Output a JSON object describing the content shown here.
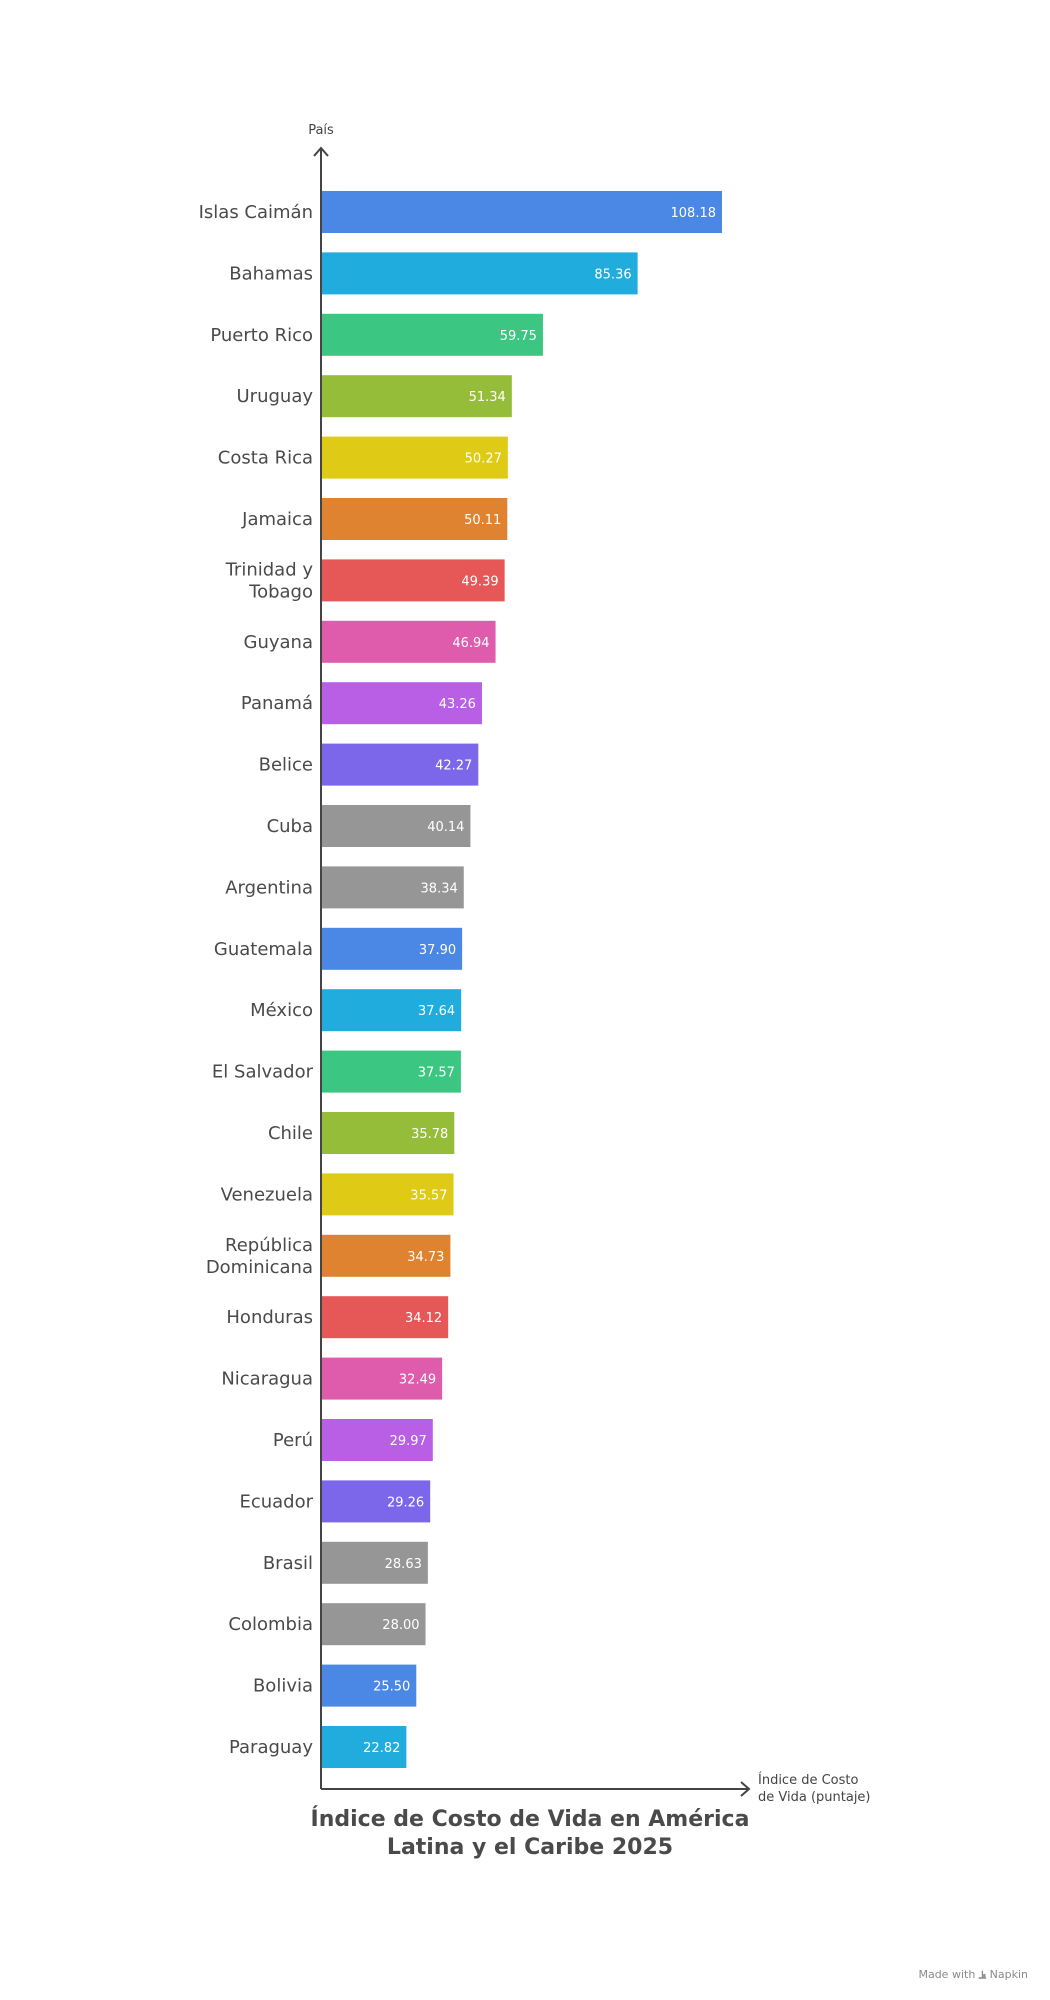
{
  "chart_data": {
    "type": "bar",
    "orientation": "horizontal",
    "title": "Índice de Costo de Vida en América Latina y el Caribe 2025",
    "ylabel": "País",
    "xlabel": "Índice de Costo de Vida (puntaje)",
    "xlim": [
      0,
      108.18
    ],
    "grid": false,
    "legend": "none",
    "categories": [
      "Islas Caimán",
      "Bahamas",
      "Puerto Rico",
      "Uruguay",
      "Costa Rica",
      "Jamaica",
      "Trinidad y Tobago",
      "Guyana",
      "Panamá",
      "Belice",
      "Cuba",
      "Argentina",
      "Guatemala",
      "México",
      "El Salvador",
      "Chile",
      "Venezuela",
      "República Dominicana",
      "Honduras",
      "Nicaragua",
      "Perú",
      "Ecuador",
      "Brasil",
      "Colombia",
      "Bolivia",
      "Paraguay"
    ],
    "category_lines": [
      [
        "Islas Caimán"
      ],
      [
        "Bahamas"
      ],
      [
        "Puerto Rico"
      ],
      [
        "Uruguay"
      ],
      [
        "Costa Rica"
      ],
      [
        "Jamaica"
      ],
      [
        "Trinidad y",
        "Tobago"
      ],
      [
        "Guyana"
      ],
      [
        "Panamá"
      ],
      [
        "Belice"
      ],
      [
        "Cuba"
      ],
      [
        "Argentina"
      ],
      [
        "Guatemala"
      ],
      [
        "México"
      ],
      [
        "El Salvador"
      ],
      [
        "Chile"
      ],
      [
        "Venezuela"
      ],
      [
        "República",
        "Dominicana"
      ],
      [
        "Honduras"
      ],
      [
        "Nicaragua"
      ],
      [
        "Perú"
      ],
      [
        "Ecuador"
      ],
      [
        "Brasil"
      ],
      [
        "Colombia"
      ],
      [
        "Bolivia"
      ],
      [
        "Paraguay"
      ]
    ],
    "values": [
      108.18,
      85.36,
      59.75,
      51.34,
      50.27,
      50.11,
      49.39,
      46.94,
      43.26,
      42.27,
      40.14,
      38.34,
      37.9,
      37.64,
      37.57,
      35.78,
      35.57,
      34.73,
      34.12,
      32.49,
      29.97,
      29.26,
      28.63,
      28.0,
      25.5,
      22.82
    ],
    "value_labels": [
      "108.18",
      "85.36",
      "59.75",
      "51.34",
      "50.27",
      "50.11",
      "49.39",
      "46.94",
      "43.26",
      "42.27",
      "40.14",
      "38.34",
      "37.90",
      "37.64",
      "37.57",
      "35.78",
      "35.57",
      "34.73",
      "34.12",
      "32.49",
      "29.97",
      "29.26",
      "28.63",
      "28.00",
      "25.50",
      "22.82"
    ],
    "colors": [
      "#4b87e4",
      "#20acdc",
      "#3bc682",
      "#95bd3a",
      "#dfca16",
      "#e08330",
      "#e65757",
      "#df5cac",
      "#b85fe6",
      "#7c66ea",
      "#969696",
      "#969696",
      "#4b87e4",
      "#20acdc",
      "#3bc682",
      "#95bd3a",
      "#dfca16",
      "#e08330",
      "#e65757",
      "#df5cac",
      "#b85fe6",
      "#7c66ea",
      "#969696",
      "#969696",
      "#4b87e4",
      "#20acdc"
    ]
  },
  "title_text": "Índice de Costo de Vida en América Latina y el Caribe 2025",
  "watermark": {
    "prefix": "Made with",
    "brand": "Napkin"
  }
}
